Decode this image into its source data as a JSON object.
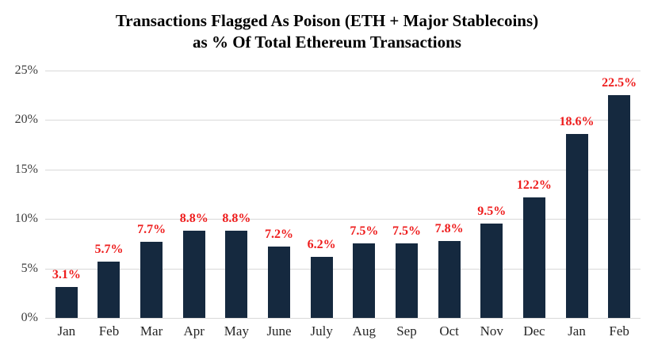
{
  "title": {
    "line1": "Transactions Flagged As Poison (ETH + Major Stablecoins)",
    "line2": "as % Of Total Ethereum Transactions"
  },
  "chart_data": {
    "type": "bar",
    "title": "Transactions Flagged As Poison (ETH + Major Stablecoins) as % Of Total Ethereum Transactions",
    "categories": [
      "Jan",
      "Feb",
      "Mar",
      "Apr",
      "May",
      "June",
      "July",
      "Aug",
      "Sep",
      "Oct",
      "Nov",
      "Dec",
      "Jan",
      "Feb"
    ],
    "values": [
      3.1,
      5.7,
      7.7,
      8.8,
      8.8,
      7.2,
      6.2,
      7.5,
      7.5,
      7.8,
      9.5,
      12.2,
      18.6,
      22.5
    ],
    "data_labels": [
      "3.1%",
      "5.7%",
      "7.7%",
      "8.8%",
      "8.8%",
      "7.2%",
      "6.2%",
      "7.5%",
      "7.5%",
      "7.8%",
      "9.5%",
      "12.2%",
      "18.6%",
      "22.5%"
    ],
    "xlabel": "",
    "ylabel": "",
    "ylim": [
      0,
      25
    ],
    "y_ticks": [
      "0%",
      "5%",
      "10%",
      "15%",
      "20%",
      "25%"
    ],
    "y_tick_values": [
      0,
      5,
      10,
      15,
      20,
      25
    ],
    "grid": "horizontal",
    "legend": "none",
    "colors": {
      "bar": "#15293f",
      "data_label": "#ee1c1c",
      "gridline": "#d9d9d9",
      "axis_text": "#3d3d3d",
      "title_text": "#000000",
      "background": "#ffffff"
    }
  }
}
